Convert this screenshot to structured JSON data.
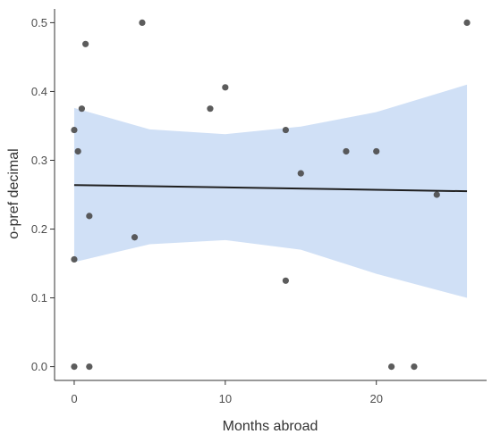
{
  "chart_data": {
    "type": "scatter",
    "title": "",
    "xlabel": "Months abroad",
    "ylabel": "o-pref decimal",
    "xlim": [
      -1.3,
      27.3
    ],
    "ylim": [
      -0.02,
      0.52
    ],
    "x_ticks": [
      {
        "value": 0,
        "label": "0"
      },
      {
        "value": 10,
        "label": "10"
      },
      {
        "value": 20,
        "label": "20"
      }
    ],
    "y_ticks": [
      {
        "value": 0.0,
        "label": "0.0"
      },
      {
        "value": 0.1,
        "label": "0.1"
      },
      {
        "value": 0.2,
        "label": "0.2"
      },
      {
        "value": 0.3,
        "label": "0.3"
      },
      {
        "value": 0.4,
        "label": "0.4"
      },
      {
        "value": 0.5,
        "label": "0.5"
      }
    ],
    "grid": false,
    "points": [
      {
        "x": 0,
        "y": 0.344
      },
      {
        "x": 0,
        "y": 0.156
      },
      {
        "x": 0,
        "y": 0.0
      },
      {
        "x": 0.25,
        "y": 0.313
      },
      {
        "x": 0.5,
        "y": 0.375
      },
      {
        "x": 0.75,
        "y": 0.469
      },
      {
        "x": 1,
        "y": 0.219
      },
      {
        "x": 1,
        "y": 0.0
      },
      {
        "x": 4,
        "y": 0.188
      },
      {
        "x": 4.5,
        "y": 0.5
      },
      {
        "x": 9,
        "y": 0.375
      },
      {
        "x": 10,
        "y": 0.406
      },
      {
        "x": 14,
        "y": 0.344
      },
      {
        "x": 14,
        "y": 0.125
      },
      {
        "x": 15,
        "y": 0.281
      },
      {
        "x": 18,
        "y": 0.313
      },
      {
        "x": 20,
        "y": 0.313
      },
      {
        "x": 21,
        "y": 0.0
      },
      {
        "x": 22.5,
        "y": 0.0
      },
      {
        "x": 24,
        "y": 0.25
      },
      {
        "x": 26,
        "y": 0.5
      }
    ],
    "trend_line": {
      "x": [
        0,
        26
      ],
      "y": [
        0.264,
        0.255
      ]
    },
    "confidence_band": {
      "x": [
        0,
        5,
        10,
        15,
        20,
        26
      ],
      "upper": [
        0.376,
        0.345,
        0.338,
        0.349,
        0.37,
        0.41
      ],
      "lower": [
        0.152,
        0.178,
        0.184,
        0.17,
        0.135,
        0.1
      ]
    },
    "colors": {
      "points": "#4a4a4a",
      "line": "#1f1f1f",
      "band": "#d0e0f6",
      "axis": "#333333"
    }
  }
}
